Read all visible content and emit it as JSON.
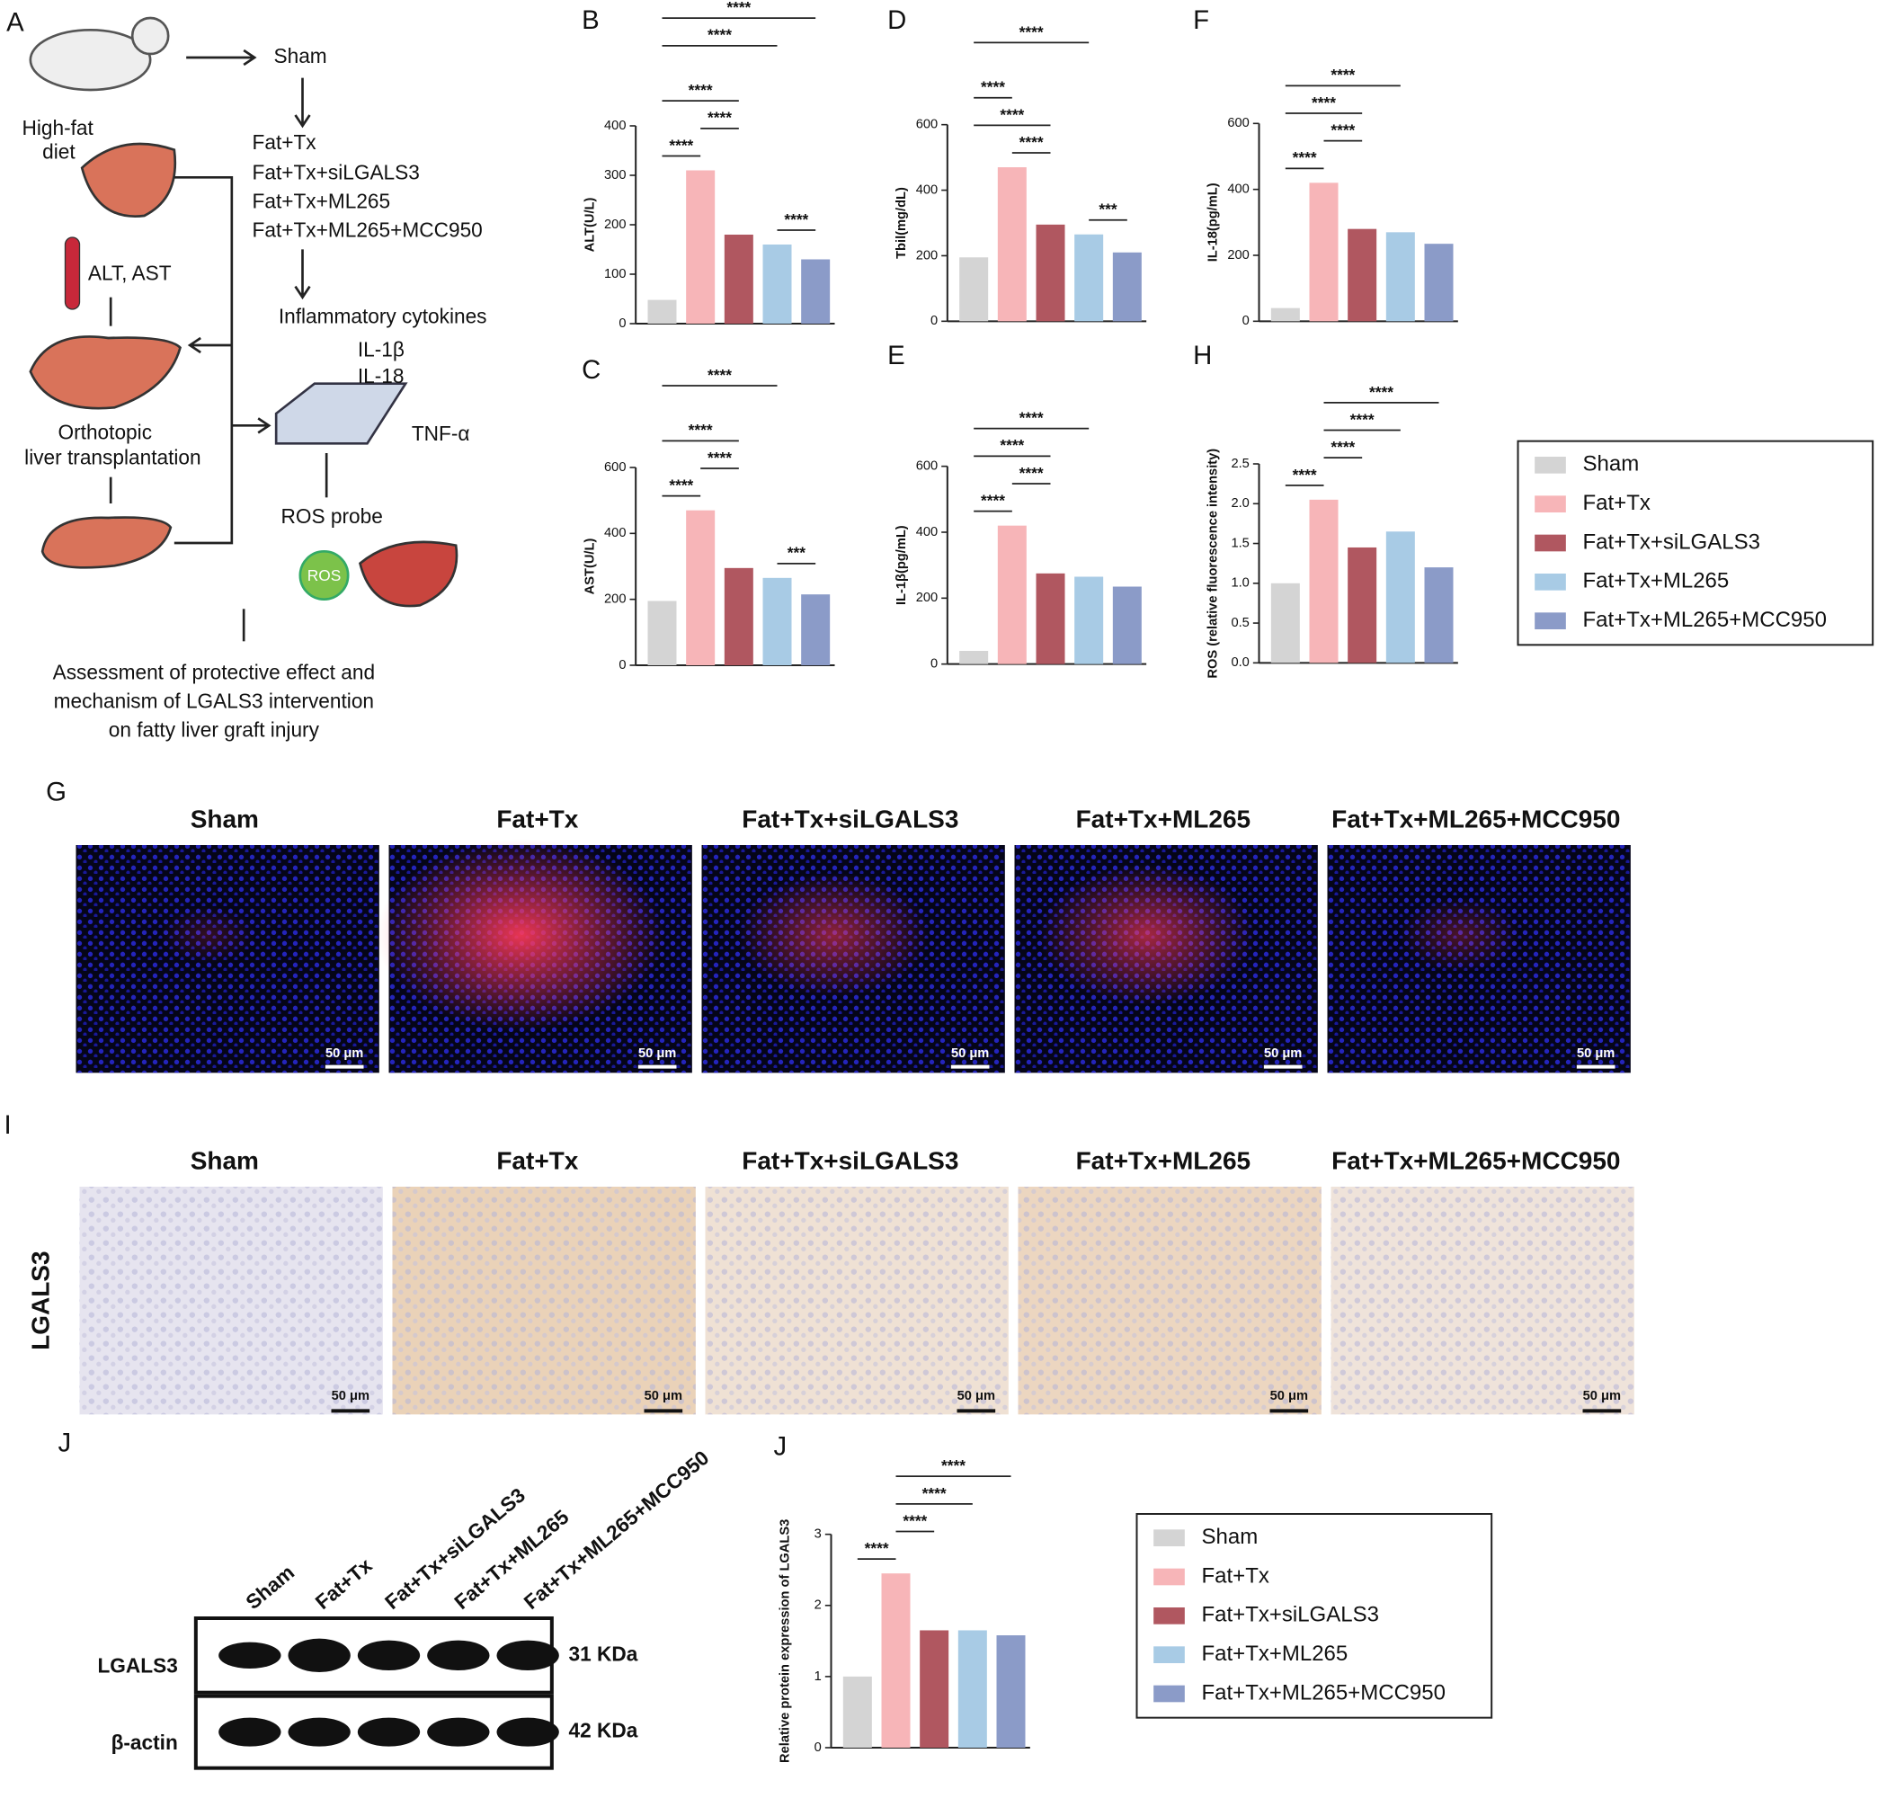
{
  "schematic": {
    "panel": "A",
    "sham": "Sham",
    "diet": [
      "High-fat",
      "diet"
    ],
    "groups": [
      "Fat+Tx",
      "Fat+Tx+siLGALS3",
      "Fat+Tx+ML265",
      "Fat+Tx+ML265+MCC950"
    ],
    "blood": "ALT, AST",
    "cytokines": "Inflammatory cytokines",
    "il1b": "IL-1β",
    "il18": "IL-18",
    "tnf": "TNF-α",
    "transplant": [
      "Orthotopic",
      "liver transplantation"
    ],
    "ros_probe": "ROS probe",
    "ros": "ROS",
    "assessment": [
      "Assessment of protective effect and",
      "mechanism of LGALS3 intervention",
      "on fatty liver graft injury"
    ]
  },
  "legends": [
    {
      "items": [
        {
          "name": "Sham",
          "color": "#d4d4d4"
        },
        {
          "name": "Fat+Tx",
          "color": "#f7b5b8"
        },
        {
          "name": "Fat+Tx+siLGALS3",
          "color": "#b05760"
        },
        {
          "name": "Fat+Tx+ML265",
          "color": "#a8cbe5"
        },
        {
          "name": "Fat+Tx+ML265+MCC950",
          "color": "#8b9bc8"
        }
      ]
    },
    {
      "items": [
        {
          "name": "Sham",
          "color": "#d4d4d4"
        },
        {
          "name": "Fat+Tx",
          "color": "#f7b5b8"
        },
        {
          "name": "Fat+Tx+siLGALS3",
          "color": "#b05760"
        },
        {
          "name": "Fat+Tx+ML265",
          "color": "#a8cbe5"
        },
        {
          "name": "Fat+Tx+ML265+MCC950",
          "color": "#8b9bc8"
        }
      ]
    }
  ],
  "chart_data": [
    {
      "type": "bar",
      "panel": "B",
      "ylabel": "ALT(U/L)",
      "values": [
        48,
        310,
        180,
        160,
        130
      ],
      "ylim": [
        0,
        400
      ],
      "yticks": [
        0,
        100,
        200,
        300,
        400
      ],
      "annotations": [
        {
          "text": "****",
          "span": [
            0,
            1
          ]
        },
        {
          "text": "****",
          "span": [
            3,
            4
          ]
        },
        {
          "text": "****",
          "span": [
            1,
            2
          ]
        },
        {
          "text": "****",
          "span": [
            0,
            2
          ]
        },
        {
          "text": "****",
          "span": [
            0,
            3
          ]
        },
        {
          "text": "****",
          "span": [
            0,
            4
          ]
        }
      ]
    },
    {
      "type": "bar",
      "panel": "C",
      "ylabel": "AST(U/L)",
      "values": [
        195,
        470,
        295,
        265,
        215
      ],
      "ylim": [
        0,
        600
      ],
      "yticks": [
        0,
        200,
        400,
        600
      ],
      "annotations": [
        {
          "text": "****",
          "span": [
            0,
            1
          ]
        },
        {
          "text": "***",
          "span": [
            3,
            4
          ]
        },
        {
          "text": "****",
          "span": [
            1,
            2
          ]
        },
        {
          "text": "****",
          "span": [
            0,
            2
          ]
        },
        {
          "text": "****",
          "span": [
            0,
            3
          ]
        }
      ]
    },
    {
      "type": "bar",
      "panel": "D",
      "ylabel": "Tbil(mg/dL)",
      "values": [
        195,
        470,
        295,
        265,
        210
      ],
      "ylim": [
        0,
        600
      ],
      "yticks": [
        0,
        200,
        400,
        600
      ],
      "annotations": [
        {
          "text": "****",
          "span": [
            1,
            2
          ]
        },
        {
          "text": "***",
          "span": [
            3,
            4
          ]
        },
        {
          "text": "****",
          "span": [
            0,
            2
          ]
        },
        {
          "text": "****",
          "span": [
            0,
            1
          ]
        },
        {
          "text": "****",
          "span": [
            0,
            3
          ]
        }
      ]
    },
    {
      "type": "bar",
      "panel": "E",
      "ylabel": "IL-1β(pg/mL)",
      "values": [
        40,
        420,
        275,
        265,
        235
      ],
      "ylim": [
        0,
        600
      ],
      "yticks": [
        0,
        200,
        400,
        600
      ],
      "annotations": [
        {
          "text": "****",
          "span": [
            0,
            1
          ]
        },
        {
          "text": "****",
          "span": [
            1,
            2
          ]
        },
        {
          "text": "****",
          "span": [
            0,
            2
          ]
        },
        {
          "text": "****",
          "span": [
            0,
            3
          ]
        }
      ]
    },
    {
      "type": "bar",
      "panel": "F",
      "ylabel": "IL-18(pg/mL)",
      "values": [
        40,
        420,
        280,
        270,
        235
      ],
      "ylim": [
        0,
        600
      ],
      "yticks": [
        0,
        200,
        400,
        600
      ],
      "annotations": [
        {
          "text": "****",
          "span": [
            0,
            1
          ]
        },
        {
          "text": "****",
          "span": [
            1,
            2
          ]
        },
        {
          "text": "****",
          "span": [
            0,
            2
          ]
        },
        {
          "text": "****",
          "span": [
            0,
            3
          ]
        }
      ]
    },
    {
      "type": "bar",
      "panel": "H",
      "ylabel": "ROS (relative fluorescence intensity)",
      "values": [
        1.0,
        2.05,
        1.45,
        1.65,
        1.2
      ],
      "ylim": [
        0,
        2.5
      ],
      "yticks": [
        {
          "value": 0,
          "label": "0.0"
        },
        0.5,
        {
          "value": 1,
          "label": "1.0"
        },
        1.5,
        {
          "value": 2,
          "label": "2.0"
        },
        2.5
      ],
      "annotations": [
        {
          "text": "****",
          "span": [
            0,
            1
          ]
        },
        {
          "text": "****",
          "span": [
            1,
            2
          ]
        },
        {
          "text": "****",
          "span": [
            1,
            3
          ]
        },
        {
          "text": "****",
          "span": [
            1,
            4
          ]
        }
      ]
    },
    {
      "type": "bar",
      "panel": "J",
      "ylabel": "Relative protein expression of  LGALS3",
      "values": [
        1.0,
        2.45,
        1.65,
        1.65,
        1.58
      ],
      "ylim": [
        0,
        3
      ],
      "yticks": [
        0,
        1,
        2,
        3
      ],
      "annotations": [
        {
          "text": "****",
          "span": [
            0,
            1
          ]
        },
        {
          "text": "****",
          "span": [
            1,
            2
          ]
        },
        {
          "text": "****",
          "span": [
            1,
            3
          ]
        },
        {
          "text": "****",
          "span": [
            1,
            4
          ]
        }
      ]
    }
  ],
  "panel_g": {
    "panel": "G",
    "titles": [
      "Sham",
      "Fat+Tx",
      "Fat+Tx+siLGALS3",
      "Fat+Tx+ML265",
      "Fat+Tx+ML265+MCC950"
    ],
    "scale_bar": "50 μm"
  },
  "panel_i": {
    "panel": "I",
    "row_label": "LGALS3",
    "titles": [
      "Sham",
      "Fat+Tx",
      "Fat+Tx+siLGALS3",
      "Fat+Tx+ML265",
      "Fat+Tx+ML265+MCC950"
    ],
    "scale_bar": "50 μm"
  },
  "blot": {
    "lanes": [
      "Sham",
      "Fat+Tx",
      "Fat+Tx+siLGALS3",
      "Fat+Tx+ML265",
      "Fat+Tx+ML265+MCC950"
    ],
    "rows": [
      {
        "protein": "LGALS3",
        "size": "31 KDa"
      },
      {
        "protein": "β-actin",
        "size": "42 KDa"
      }
    ]
  }
}
